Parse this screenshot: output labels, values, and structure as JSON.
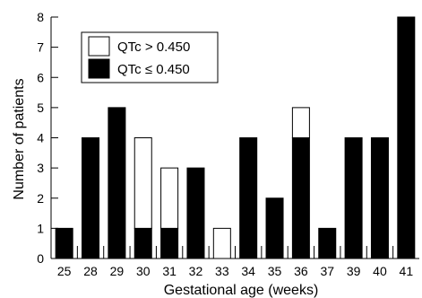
{
  "chart_data": {
    "type": "bar",
    "stacked": true,
    "categories": [
      "25",
      "28",
      "29",
      "30",
      "31",
      "32",
      "33",
      "34",
      "35",
      "36",
      "37",
      "39",
      "40",
      "41"
    ],
    "series": [
      {
        "name": "QTc ≤ 0.450",
        "color": "#000000",
        "values": [
          1,
          4,
          5,
          1,
          1,
          3,
          0,
          4,
          2,
          4,
          1,
          4,
          4,
          8
        ]
      },
      {
        "name": "QTc > 0.450",
        "color": "#ffffff",
        "values": [
          0,
          0,
          0,
          3,
          2,
          0,
          1,
          0,
          0,
          1,
          0,
          0,
          0,
          0
        ]
      }
    ],
    "xlabel": "Gestational age (weeks)",
    "ylabel": "Number of patients",
    "ylim": [
      0,
      8
    ],
    "yticks": [
      "0",
      "1",
      "2",
      "3",
      "4",
      "5",
      "6",
      "7",
      "8"
    ],
    "grid": false,
    "legend_position": "top-left"
  }
}
